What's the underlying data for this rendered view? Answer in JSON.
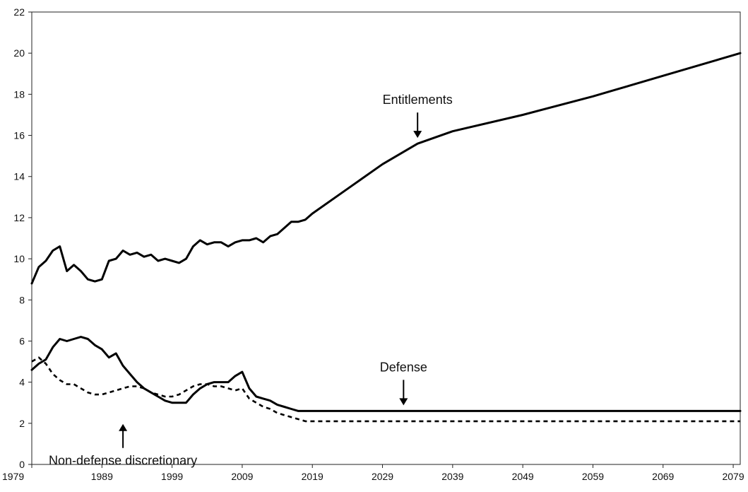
{
  "chart_data": {
    "type": "line",
    "title": "",
    "xlabel": "",
    "ylabel": "",
    "xlim": [
      1979,
      2080
    ],
    "ylim": [
      0,
      22
    ],
    "yticks": [
      0,
      2,
      4,
      6,
      8,
      10,
      12,
      14,
      16,
      18,
      20,
      22
    ],
    "xticks": [
      1979,
      1989,
      1999,
      2009,
      2019,
      2029,
      2039,
      2049,
      2059,
      2069,
      2079
    ],
    "grid": false,
    "legend": "none",
    "series": [
      {
        "key": "entitlements",
        "style": "solid",
        "color": "#000000",
        "x": [
          1979,
          1980,
          1981,
          1982,
          1983,
          1984,
          1985,
          1986,
          1987,
          1988,
          1989,
          1990,
          1991,
          1992,
          1993,
          1994,
          1995,
          1996,
          1997,
          1998,
          1999,
          2000,
          2001,
          2002,
          2003,
          2004,
          2005,
          2006,
          2007,
          2008,
          2009,
          2010,
          2011,
          2012,
          2013,
          2014,
          2015,
          2016,
          2017,
          2018,
          2019,
          2024,
          2029,
          2034,
          2039,
          2049,
          2059,
          2069,
          2080
        ],
        "values": [
          8.8,
          9.6,
          9.9,
          10.4,
          10.6,
          9.4,
          9.7,
          9.4,
          9.0,
          8.9,
          9.0,
          9.9,
          10.0,
          10.4,
          10.2,
          10.3,
          10.1,
          10.2,
          9.9,
          10.0,
          9.9,
          9.8,
          10.0,
          10.6,
          10.9,
          10.7,
          10.8,
          10.8,
          10.6,
          10.8,
          10.9,
          10.9,
          11.0,
          10.8,
          11.1,
          11.2,
          11.5,
          11.8,
          11.8,
          11.9,
          12.2,
          13.4,
          14.6,
          15.6,
          16.2,
          17.0,
          17.9,
          18.9,
          20.0
        ]
      },
      {
        "key": "defense",
        "style": "solid",
        "color": "#000000",
        "x": [
          1979,
          1980,
          1981,
          1982,
          1983,
          1984,
          1985,
          1986,
          1987,
          1988,
          1989,
          1990,
          1991,
          1992,
          1993,
          1994,
          1995,
          1996,
          1997,
          1998,
          1999,
          2000,
          2001,
          2002,
          2003,
          2004,
          2005,
          2006,
          2007,
          2008,
          2009,
          2010,
          2011,
          2012,
          2013,
          2014,
          2015,
          2016,
          2017,
          2018,
          2019,
          2024,
          2080
        ],
        "values": [
          4.6,
          4.9,
          5.1,
          5.7,
          6.1,
          6.0,
          6.1,
          6.2,
          6.1,
          5.8,
          5.6,
          5.2,
          5.4,
          4.8,
          4.4,
          4.0,
          3.7,
          3.5,
          3.3,
          3.1,
          3.0,
          3.0,
          3.0,
          3.4,
          3.7,
          3.9,
          4.0,
          4.0,
          4.0,
          4.3,
          4.5,
          3.7,
          3.3,
          3.2,
          3.1,
          2.9,
          2.8,
          2.7,
          2.6,
          2.6,
          2.6,
          2.6,
          2.6
        ]
      },
      {
        "key": "non_defense",
        "style": "dashed",
        "color": "#000000",
        "x": [
          1979,
          1980,
          1981,
          1982,
          1983,
          1984,
          1985,
          1986,
          1987,
          1988,
          1989,
          1990,
          1991,
          1992,
          1993,
          1994,
          1995,
          1996,
          1997,
          1998,
          1999,
          2000,
          2001,
          2002,
          2003,
          2004,
          2005,
          2006,
          2007,
          2008,
          2009,
          2010,
          2011,
          2012,
          2013,
          2014,
          2015,
          2016,
          2017,
          2018,
          2019,
          2024,
          2080
        ],
        "values": [
          5.0,
          5.2,
          4.9,
          4.4,
          4.1,
          3.9,
          3.9,
          3.7,
          3.5,
          3.4,
          3.4,
          3.5,
          3.6,
          3.7,
          3.8,
          3.8,
          3.7,
          3.5,
          3.4,
          3.3,
          3.3,
          3.4,
          3.6,
          3.8,
          3.9,
          3.9,
          3.8,
          3.8,
          3.7,
          3.6,
          3.7,
          3.2,
          3.0,
          2.8,
          2.7,
          2.5,
          2.4,
          2.3,
          2.2,
          2.1,
          2.1,
          2.1,
          2.1
        ]
      }
    ],
    "annotations": [
      {
        "text": "Entitlements",
        "arrow": "down",
        "x": 2034,
        "y": 15.6
      },
      {
        "text": "Defense",
        "arrow": "down",
        "x": 2032,
        "y": 2.6
      },
      {
        "text": "Non-defense discretionary",
        "arrow": "up",
        "x": 1992,
        "y": 3.0
      }
    ]
  }
}
